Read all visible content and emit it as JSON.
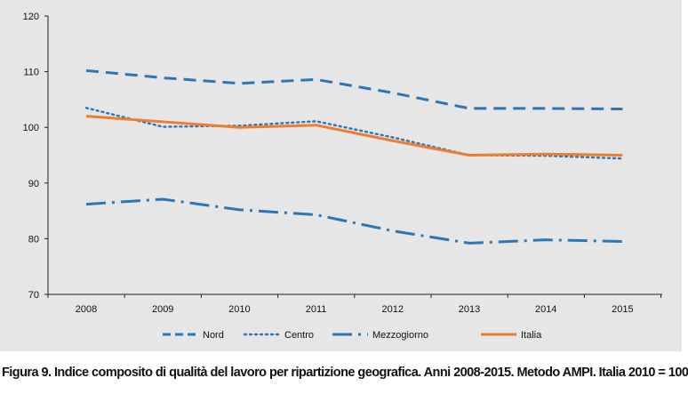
{
  "chart_data": {
    "type": "line",
    "x": [
      "2008",
      "2009",
      "2010",
      "2011",
      "2012",
      "2013",
      "2014",
      "2015"
    ],
    "series": [
      {
        "name": "Nord",
        "values": [
          110.2,
          108.9,
          107.9,
          108.6,
          106.2,
          103.4,
          103.4,
          103.3
        ],
        "color": "#2e75b6",
        "style": "dashed"
      },
      {
        "name": "Centro",
        "values": [
          103.5,
          100.1,
          100.3,
          101.1,
          98.2,
          95.0,
          94.9,
          94.4
        ],
        "color": "#2e75b6",
        "style": "dotted"
      },
      {
        "name": "Mezzogiorno",
        "values": [
          86.2,
          87.1,
          85.2,
          84.3,
          81.4,
          79.2,
          79.8,
          79.5
        ],
        "color": "#2e75b6",
        "style": "dash-dot"
      },
      {
        "name": "Italia",
        "values": [
          102.0,
          101.0,
          100.0,
          100.4,
          97.6,
          95.0,
          95.2,
          95.0
        ],
        "color": "#ed7d31",
        "style": "solid"
      }
    ],
    "yticks": [
      "70",
      "80",
      "90",
      "100",
      "110",
      "120"
    ],
    "ylim": [
      70,
      120
    ],
    "grid": false,
    "legend_position": "bottom"
  },
  "caption": "Figura 9. Indice composito di qualità del lavoro per ripartizione geografica. Anni 2008-2015. Metodo AMPI. Italia 2010 = 100"
}
